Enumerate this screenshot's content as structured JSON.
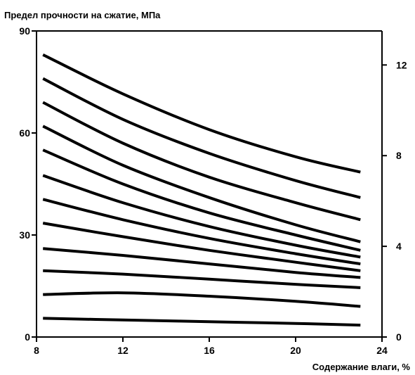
{
  "chart_data": {
    "type": "line",
    "ylabel": "Предел прочности на сжатие, МПа",
    "xlabel": "Содержание влаги, %",
    "x_ticks": [
      "8",
      "12",
      "16",
      "20",
      "24"
    ],
    "y_ticks_left": [
      "0",
      "30",
      "60",
      "90"
    ],
    "y_ticks_right": [
      "0",
      "4",
      "8",
      "12"
    ],
    "xlim": [
      8,
      24
    ],
    "ylim": [
      0,
      90
    ],
    "y2lim": [
      0,
      13.5
    ],
    "grid": false,
    "series": [
      {
        "x": [
          8.3,
          12,
          16,
          20,
          23
        ],
        "y": [
          83,
          71.5,
          61,
          53,
          48.5
        ]
      },
      {
        "x": [
          8.3,
          12,
          16,
          20,
          23
        ],
        "y": [
          76,
          64,
          54,
          46,
          41
        ]
      },
      {
        "x": [
          8.3,
          12,
          16,
          20,
          23
        ],
        "y": [
          69,
          57,
          47,
          39.5,
          34.5
        ]
      },
      {
        "x": [
          8.3,
          12,
          16,
          20,
          23
        ],
        "y": [
          62,
          50.5,
          41,
          33,
          28
        ]
      },
      {
        "x": [
          8.3,
          12,
          16,
          20,
          23
        ],
        "y": [
          55,
          45,
          36.5,
          30,
          25.5
        ]
      },
      {
        "x": [
          8.3,
          12,
          16,
          20,
          23
        ],
        "y": [
          47.5,
          39.5,
          32.5,
          27,
          23.5
        ]
      },
      {
        "x": [
          8.3,
          12,
          16,
          20,
          23
        ],
        "y": [
          40.5,
          34.5,
          29,
          24.5,
          21.5
        ]
      },
      {
        "x": [
          8.3,
          12,
          16,
          20,
          23
        ],
        "y": [
          33.5,
          29.5,
          25.5,
          22,
          19.5
        ]
      },
      {
        "x": [
          8.3,
          12,
          16,
          20,
          23
        ],
        "y": [
          26,
          24,
          21.5,
          19,
          17.5
        ]
      },
      {
        "x": [
          8.3,
          12,
          16,
          20,
          23
        ],
        "y": [
          19.5,
          18.5,
          17,
          15.5,
          14.5
        ]
      },
      {
        "x": [
          8.3,
          12,
          16,
          20,
          23
        ],
        "y": [
          12.5,
          13,
          12,
          10.5,
          9
        ]
      },
      {
        "x": [
          8.3,
          12,
          16,
          20,
          23
        ],
        "y": [
          5.5,
          5,
          4.5,
          4,
          3.5
        ]
      }
    ]
  }
}
